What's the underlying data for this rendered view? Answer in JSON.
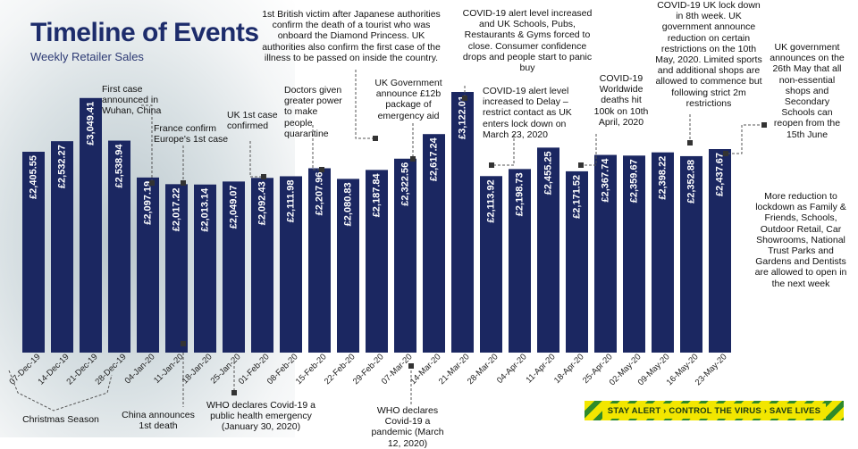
{
  "chart_data": {
    "type": "bar",
    "title": "Timeline of Events",
    "subtitle": "Weekly Retailer Sales",
    "categories": [
      "07-Dec-19",
      "14-Dec-19",
      "21-Dec-19",
      "28-Dec-19",
      "04-Jan-20",
      "11-Jan-20",
      "18-Jan-20",
      "25-Jan-20",
      "01-Feb-20",
      "08-Feb-20",
      "15-Feb-20",
      "22-Feb-20",
      "29-Feb-20",
      "07-Mar-20",
      "14-Mar-20",
      "21-Mar-20",
      "28-Mar-20",
      "04-Apr-20",
      "11-Apr-20",
      "18-Apr-20",
      "25-Apr-20",
      "02-May-20",
      "09-May-20",
      "16-May-20",
      "23-May-20"
    ],
    "values": [
      2405.55,
      2532.27,
      3049.41,
      2538.94,
      2097.19,
      2017.22,
      2013.14,
      2049.07,
      2092.43,
      2111.98,
      2207.96,
      2080.83,
      2187.84,
      2322.56,
      2617.24,
      3122.01,
      2113.92,
      2198.73,
      2455.25,
      2171.52,
      2367.74,
      2359.67,
      2398.22,
      2352.88,
      2437.67
    ],
    "labels": [
      "£2,405.55",
      "£2,532.27",
      "£3,049.41",
      "£2,538.94",
      "£2,097.19",
      "£2,017.22",
      "£2,013.14",
      "£2,049.07",
      "£2,092.43",
      "£2,111.98",
      "£2,207.96",
      "£2,080.83",
      "£2,187.84",
      "£2,322.56",
      "£2,617.24",
      "£3,122.01",
      "£2,113.92",
      "£2,198.73",
      "£2,455.25",
      "£2,171.52",
      "£2,367.74",
      "£2,359.67",
      "£2,398.22",
      "£2,352.88",
      "£2,437.67"
    ],
    "ylim": [
      0,
      3300
    ],
    "grid": false,
    "bar_color": "#1b2761"
  },
  "annotations": {
    "first_case": "First case announced in Wuhan, China",
    "france": "France confirm Europe's 1st case",
    "uk_case": "UK 1st case confirmed",
    "british_victim": "1st British victim after Japanese authorities confirm the death of a tourist who was onboard the Diamond Princess. UK authorities also confirm the first case of the illness to be passed on inside the country.",
    "doctors": "Doctors given greater power to make people quarantine",
    "package": "UK Government announce £12b package of emergency aid",
    "alert_increased": "COVID-19 alert level increased and UK Schools, Pubs, Restaurants & Gyms forced to close. Consumer confidence drops and people start to panic buy",
    "alert_delay": "COVID-19 alert level increased to Delay – restrict contact as UK enters lock down on March 23, 2020",
    "worldwide": "COVID-19 Worldwide deaths hit 100k on 10th April, 2020",
    "lockdown_week": "COVID-19 UK lock down in 8th week. UK government announce reduction on certain restrictions on the 10th May, 2020. Limited sports and additional shops are allowed to commence but following strict 2m restrictions",
    "shops_reopen": "UK government announces on the 26th May that all non-essential shops and Secondary Schools can reopen from the 15th June",
    "lockdown_reduction": "More reduction to lockdown as Family & Friends, Schools, Outdoor Retail, Car Showrooms, National Trust Parks and Gardens and Dentists are allowed to open in the next week",
    "christmas": "Christmas Season",
    "china_death": "China announces 1st death",
    "who_emergency": "WHO declares Covid-19 a public health emergency (January 30, 2020)",
    "who_pandemic": "WHO declares Covid-19 a pandemic (March 12, 2020)"
  },
  "banner": {
    "text": "STAY ALERT › CONTROL THE VIRUS › SAVE LIVES",
    "colors": [
      "#f2e600",
      "#2f8a2a"
    ]
  }
}
